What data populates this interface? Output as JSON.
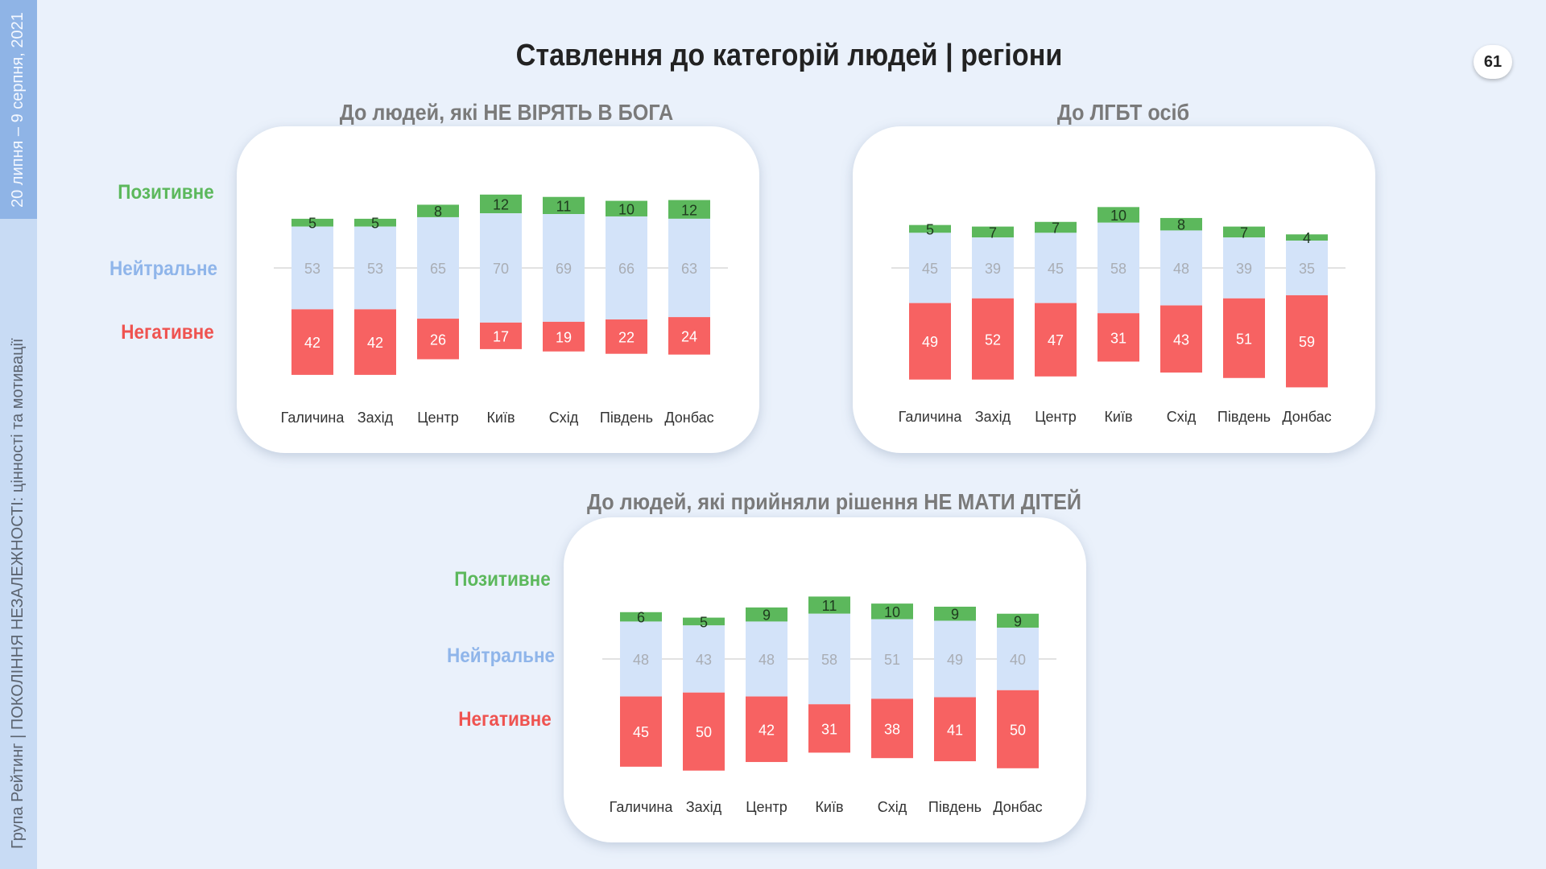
{
  "sidebar": {
    "date": "20 липня – 9 серпня, 2021",
    "org": "Група Рейтинг | ПОКОЛІННЯ НЕЗАЛЕЖНОСТІ: цінності та мотивації"
  },
  "title": "Ставлення до категорій людей | регіони",
  "page_number": "61",
  "legend": {
    "positive": "Позитивне",
    "neutral": "Нейтральне",
    "negative": "Негативне"
  },
  "colors": {
    "positive": "#5cb85c",
    "neutral": "#d3e3f9",
    "negative": "#f76262"
  },
  "chart_data": [
    {
      "type": "bar",
      "stacked": true,
      "title": "До людей, які НЕ ВІРЯТЬ В БОГА",
      "categories": [
        "Галичина",
        "Захід",
        "Центр",
        "Київ",
        "Схід",
        "Південь",
        "Донбас"
      ],
      "series": [
        {
          "name": "Позитивне",
          "values": [
            5,
            5,
            8,
            12,
            11,
            10,
            12
          ]
        },
        {
          "name": "Нейтральне",
          "values": [
            53,
            53,
            65,
            70,
            69,
            66,
            63
          ]
        },
        {
          "name": "Негативне",
          "values": [
            42,
            42,
            26,
            17,
            19,
            22,
            24
          ]
        }
      ]
    },
    {
      "type": "bar",
      "stacked": true,
      "title": "До ЛГБТ осіб",
      "categories": [
        "Галичина",
        "Захід",
        "Центр",
        "Київ",
        "Схід",
        "Південь",
        "Донбас"
      ],
      "series": [
        {
          "name": "Позитивне",
          "values": [
            5,
            7,
            7,
            10,
            8,
            7,
            4
          ]
        },
        {
          "name": "Нейтральне",
          "values": [
            45,
            39,
            45,
            58,
            48,
            39,
            35
          ]
        },
        {
          "name": "Негативне",
          "values": [
            49,
            52,
            47,
            31,
            43,
            51,
            59
          ]
        }
      ]
    },
    {
      "type": "bar",
      "stacked": true,
      "title": "До людей, які прийняли рішення НЕ МАТИ ДІТЕЙ",
      "categories": [
        "Галичина",
        "Захід",
        "Центр",
        "Київ",
        "Схід",
        "Південь",
        "Донбас"
      ],
      "series": [
        {
          "name": "Позитивне",
          "values": [
            6,
            5,
            9,
            11,
            10,
            9,
            9
          ]
        },
        {
          "name": "Нейтральне",
          "values": [
            48,
            43,
            48,
            58,
            51,
            49,
            40
          ]
        },
        {
          "name": "Негативне",
          "values": [
            45,
            50,
            42,
            31,
            38,
            41,
            50
          ]
        }
      ]
    }
  ]
}
